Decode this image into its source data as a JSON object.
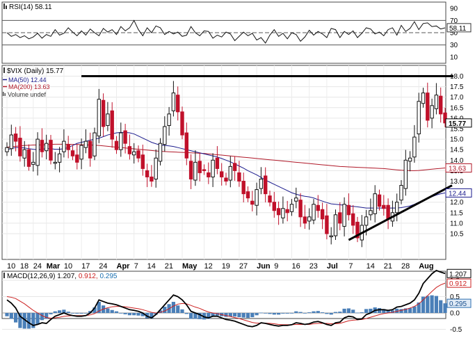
{
  "chart_data": [
    {
      "type": "line",
      "panel": "RSI",
      "label": "RSI(14)",
      "value_label": "58.11",
      "ylim": [
        0,
        100
      ],
      "y_ticks": [
        90,
        70,
        50,
        30,
        10
      ],
      "reference_lines": [
        70,
        50,
        30
      ],
      "current_value": 58.11,
      "series": [
        {
          "name": "RSI(14)",
          "values": [
            50,
            44,
            47,
            42,
            45,
            40,
            43,
            49,
            41,
            47,
            44,
            55,
            46,
            49,
            58,
            51,
            45,
            53,
            46,
            56,
            50,
            45,
            57,
            51,
            55,
            47,
            60,
            53,
            58,
            70,
            55,
            45,
            58,
            50,
            61,
            58,
            47,
            52,
            48,
            51,
            44,
            46,
            60,
            50,
            45,
            53,
            52,
            41,
            46,
            43,
            51,
            48,
            37,
            44,
            51,
            45,
            49,
            38,
            42,
            33,
            46,
            55,
            44,
            49,
            40,
            50,
            47,
            36,
            43,
            54,
            46,
            52,
            48,
            42,
            57,
            55,
            42,
            52,
            47,
            53,
            42,
            49,
            58,
            56,
            48,
            51,
            45,
            55,
            58,
            46,
            62,
            52,
            57,
            68,
            55,
            65,
            66,
            60,
            61,
            56,
            58
          ]
        }
      ]
    },
    {
      "type": "candlestick",
      "panel": "price",
      "title": "$VIX (Daily) 15.77",
      "ylim": [
        10,
        18.5
      ],
      "y_ticks": [
        10.5,
        11.0,
        11.5,
        12.0,
        12.5,
        13.0,
        13.5,
        14.0,
        14.5,
        15.0,
        15.5,
        16.0,
        16.5,
        17.0,
        17.5,
        18.0
      ],
      "x_tick_labels": [
        "10",
        "18",
        "24",
        "Mar",
        "10",
        "17",
        "24",
        "Apr",
        "7",
        "14",
        "21",
        "May",
        "12",
        "19",
        "27",
        "Jun",
        "9",
        "16",
        "23",
        "Jul",
        "7",
        "14",
        "21",
        "28",
        "Aug"
      ],
      "legend": [
        {
          "label": "$VIX (Daily) 15.77",
          "color": "#000000"
        },
        {
          "label": "MA(50) 12.44",
          "color": "#1a1a8c"
        },
        {
          "label": "MA(200) 13.63",
          "color": "#b01828"
        },
        {
          "label": "Volume undef",
          "color": "#555555"
        }
      ],
      "value_tags": [
        {
          "label": "15.77",
          "value": 15.77
        },
        {
          "label": "13.63",
          "value": 13.63
        },
        {
          "label": "12.44",
          "value": 12.44
        }
      ],
      "close": [
        14.6,
        15.2,
        14.9,
        14.2,
        14.5,
        13.7,
        13.9,
        15.0,
        14.4,
        14.8,
        14.0,
        13.9,
        14.3,
        14.9,
        14.5,
        14.2,
        13.9,
        14.7,
        14.9,
        14.1,
        15.3,
        16.9,
        15.6,
        16.2,
        15.0,
        14.5,
        15.3,
        14.8,
        14.3,
        14.4,
        14.1,
        13.6,
        13.2,
        13.0,
        14.1,
        14.8,
        15.6,
        16.2,
        17.2,
        16.3,
        15.2,
        14.1,
        13.1,
        13.9,
        13.4,
        13.5,
        13.2,
        14.0,
        13.6,
        13.2,
        13.0,
        13.7,
        13.5,
        13.0,
        12.4,
        12.2,
        11.9,
        12.6,
        13.1,
        12.4,
        12.0,
        11.6,
        11.4,
        11.7,
        11.5,
        11.9,
        12.2,
        11.3,
        11.0,
        11.3,
        11.9,
        11.6,
        11.2,
        10.5,
        10.4,
        11.4,
        11.0,
        11.9,
        11.4,
        10.9,
        10.3,
        10.9,
        11.3,
        11.6,
        12.4,
        11.8,
        11.7,
        11.2,
        11.5,
        12.0,
        12.8,
        14.0,
        14.1,
        15.1,
        16.8,
        17.2,
        15.9,
        16.6,
        17.1,
        16.2,
        15.77
      ],
      "ma50": [
        14.5,
        14.55,
        14.6,
        14.6,
        14.58,
        14.55,
        14.52,
        14.5,
        14.52,
        14.55,
        14.55,
        14.52,
        14.52,
        14.55,
        14.6,
        14.7,
        14.8,
        14.85,
        14.9,
        14.95,
        15.0,
        15.05,
        15.12,
        15.2,
        15.25,
        15.3,
        15.32,
        15.32,
        15.3,
        15.25,
        15.15,
        15.05,
        14.95,
        14.85,
        14.78,
        14.72,
        14.7,
        14.68,
        14.65,
        14.6,
        14.55,
        14.5,
        14.45,
        14.4,
        14.35,
        14.3,
        14.25,
        14.2,
        14.15,
        14.08,
        14.0,
        13.92,
        13.82,
        13.72,
        13.62,
        13.5,
        13.4,
        13.3,
        13.18,
        13.05,
        12.95,
        12.85,
        12.75,
        12.65,
        12.55,
        12.45,
        12.38,
        12.32,
        12.28,
        12.25,
        12.2,
        12.12,
        12.05,
        11.98,
        11.92,
        11.9,
        11.88,
        11.85,
        11.82,
        11.8,
        11.78,
        11.75,
        11.72,
        11.72,
        11.72,
        11.72,
        11.72,
        11.72,
        11.72,
        11.72,
        11.74,
        11.78,
        11.82,
        11.9,
        12.0,
        12.1,
        12.18,
        12.26,
        12.34,
        12.4,
        12.44
      ],
      "ma200": [
        14.62,
        14.64,
        14.66,
        14.68,
        14.7,
        14.71,
        14.72,
        14.72,
        14.73,
        14.74,
        14.75,
        14.76,
        14.76,
        14.76,
        14.76,
        14.75,
        14.75,
        14.74,
        14.73,
        14.72,
        14.71,
        14.7,
        14.68,
        14.66,
        14.64,
        14.62,
        14.6,
        14.58,
        14.56,
        14.54,
        14.52,
        14.5,
        14.48,
        14.46,
        14.44,
        14.42,
        14.41,
        14.4,
        14.39,
        14.38,
        14.37,
        14.36,
        14.35,
        14.34,
        14.33,
        14.32,
        14.3,
        14.28,
        14.26,
        14.24,
        14.22,
        14.2,
        14.18,
        14.16,
        14.14,
        14.12,
        14.1,
        14.08,
        14.06,
        14.04,
        14.02,
        14.0,
        13.98,
        13.96,
        13.94,
        13.92,
        13.9,
        13.88,
        13.86,
        13.84,
        13.82,
        13.8,
        13.78,
        13.76,
        13.74,
        13.72,
        13.7,
        13.69,
        13.68,
        13.67,
        13.66,
        13.65,
        13.64,
        13.63,
        13.62,
        13.61,
        13.6,
        13.58,
        13.56,
        13.54,
        13.52,
        13.51,
        13.5,
        13.5,
        13.51,
        13.53,
        13.55,
        13.57,
        13.59,
        13.61,
        13.63
      ],
      "trendlines": [
        {
          "start": [
            17,
            18.0
          ],
          "end": [
            100,
            18.0
          ]
        },
        {
          "start": [
            78,
            10.2
          ],
          "end": [
            100,
            12.8
          ]
        }
      ]
    },
    {
      "type": "line",
      "panel": "MACD",
      "label": "MACD(12,26,9)",
      "values_label": [
        "1.207",
        "0.912",
        "0.295"
      ],
      "ylim": [
        -0.75,
        1.5
      ],
      "y_ticks": [
        1.0,
        0.5,
        0.0,
        -0.5
      ],
      "series": [
        {
          "name": "MACD",
          "color": "#000000",
          "values": [
            0.4,
            0.3,
            0.15,
            -0.1,
            -0.2,
            -0.3,
            -0.38,
            -0.35,
            -0.3,
            -0.32,
            -0.2,
            -0.1,
            -0.05,
            0.0,
            -0.05,
            -0.08,
            -0.1,
            -0.1,
            -0.08,
            0.0,
            0.15,
            0.4,
            0.35,
            0.3,
            0.28,
            0.25,
            0.2,
            0.15,
            0.1,
            0.08,
            0.05,
            0.0,
            -0.1,
            -0.15,
            -0.05,
            0.1,
            0.25,
            0.4,
            0.55,
            0.5,
            0.4,
            0.25,
            0.05,
            0.0,
            -0.05,
            -0.12,
            -0.15,
            -0.1,
            -0.1,
            -0.15,
            -0.2,
            -0.22,
            -0.25,
            -0.3,
            -0.35,
            -0.4,
            -0.42,
            -0.38,
            -0.3,
            -0.32,
            -0.35,
            -0.38,
            -0.4,
            -0.38,
            -0.38,
            -0.36,
            -0.3,
            -0.32,
            -0.35,
            -0.33,
            -0.28,
            -0.26,
            -0.3,
            -0.35,
            -0.38,
            -0.3,
            -0.28,
            -0.15,
            -0.1,
            -0.12,
            -0.2,
            -0.18,
            -0.05,
            0.0,
            0.08,
            0.1,
            0.1,
            0.08,
            0.1,
            0.18,
            0.2,
            0.25,
            0.3,
            0.4,
            0.6,
            0.9,
            1.05,
            1.2,
            1.3,
            1.25,
            1.207
          ]
        },
        {
          "name": "Signal",
          "color": "#cc2020",
          "values": [
            0.5,
            0.48,
            0.44,
            0.36,
            0.28,
            0.18,
            0.08,
            0.0,
            -0.08,
            -0.14,
            -0.16,
            -0.15,
            -0.13,
            -0.1,
            -0.09,
            -0.08,
            -0.08,
            -0.08,
            -0.08,
            -0.06,
            -0.02,
            0.06,
            0.12,
            0.16,
            0.19,
            0.2,
            0.2,
            0.19,
            0.17,
            0.15,
            0.13,
            0.1,
            0.06,
            0.02,
            0.0,
            0.02,
            0.06,
            0.13,
            0.21,
            0.27,
            0.29,
            0.28,
            0.23,
            0.18,
            0.14,
            0.08,
            0.03,
            0.0,
            -0.02,
            -0.05,
            -0.08,
            -0.11,
            -0.14,
            -0.17,
            -0.21,
            -0.25,
            -0.29,
            -0.31,
            -0.31,
            -0.31,
            -0.32,
            -0.33,
            -0.35,
            -0.36,
            -0.36,
            -0.36,
            -0.35,
            -0.35,
            -0.35,
            -0.35,
            -0.33,
            -0.32,
            -0.32,
            -0.32,
            -0.33,
            -0.33,
            -0.32,
            -0.28,
            -0.24,
            -0.22,
            -0.21,
            -0.2,
            -0.17,
            -0.13,
            -0.09,
            -0.05,
            -0.02,
            0.0,
            0.02,
            0.05,
            0.08,
            0.11,
            0.15,
            0.2,
            0.28,
            0.4,
            0.53,
            0.66,
            0.78,
            0.86,
            0.912
          ]
        }
      ]
    }
  ]
}
